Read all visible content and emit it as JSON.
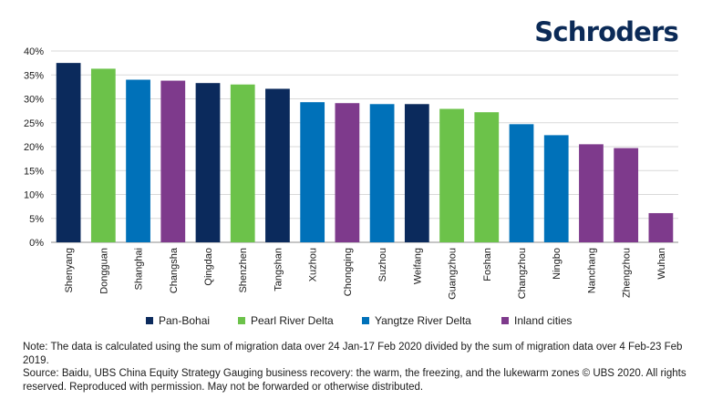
{
  "brand": {
    "logo_text": "Schroders"
  },
  "colors": {
    "Pan-Bohai": "#0b2a5c",
    "Pearl River Delta": "#6cc24a",
    "Yangtze River Delta": "#0071b9",
    "Inland cities": "#7e3a8c"
  },
  "chart_data": {
    "type": "bar",
    "title": "",
    "xlabel": "",
    "ylabel": "",
    "ylim": [
      0,
      40
    ],
    "yticks": [
      0,
      5,
      10,
      15,
      20,
      25,
      30,
      35,
      40
    ],
    "ytick_labels": [
      "0%",
      "5%",
      "10%",
      "15%",
      "20%",
      "25%",
      "30%",
      "35%",
      "40%"
    ],
    "grid": true,
    "legend_position": "bottom",
    "categories": [
      "Shenyang",
      "Dongguan",
      "Shanghai",
      "Changsha",
      "Qingdao",
      "Shenzhen",
      "Tangshan",
      "Xuzhou",
      "Chongqing",
      "Suzhou",
      "Weifang",
      "Guangzhou",
      "Foshan",
      "Changzhou",
      "Ningbo",
      "Nanchang",
      "Zhengzhou",
      "Wuhan"
    ],
    "values": [
      37.5,
      36.3,
      34.0,
      33.8,
      33.3,
      33.0,
      32.1,
      29.3,
      29.1,
      28.9,
      28.9,
      27.9,
      27.2,
      24.7,
      22.4,
      20.5,
      19.7,
      6.1
    ],
    "groups": [
      "Pan-Bohai",
      "Pearl River Delta",
      "Yangtze River Delta",
      "Inland cities",
      "Pan-Bohai",
      "Pearl River Delta",
      "Pan-Bohai",
      "Yangtze River Delta",
      "Inland cities",
      "Yangtze River Delta",
      "Pan-Bohai",
      "Pearl River Delta",
      "Pearl River Delta",
      "Yangtze River Delta",
      "Yangtze River Delta",
      "Inland cities",
      "Inland cities",
      "Inland cities"
    ],
    "legend": [
      "Pan-Bohai",
      "Pearl River Delta",
      "Yangtze River Delta",
      "Inland cities"
    ]
  },
  "notes": {
    "note": "Note: The data is calculated using the sum of migration data over 24 Jan-17 Feb 2020 divided by the sum of migration data over 4 Feb-23 Feb 2019.",
    "source": "Source: Baidu, UBS China Equity Strategy Gauging business recovery: the warm, the freezing, and the lukewarm zones © UBS 2020. All rights reserved. Reproduced with permission. May not be forwarded or otherwise distributed."
  }
}
